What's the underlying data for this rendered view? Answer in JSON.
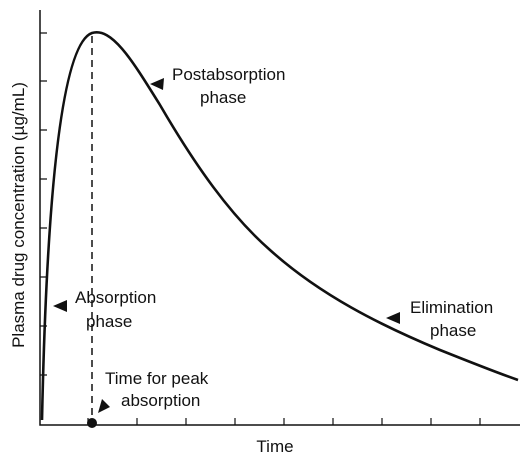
{
  "axis_labels": {
    "x": "Time",
    "y": "Plasma drug concentration (µg/mL)"
  },
  "annotations": [
    {
      "lines": [
        "Postabsorption",
        "phase"
      ]
    },
    {
      "lines": [
        "Absorption",
        "phase"
      ]
    },
    {
      "lines": [
        "Elimination",
        "phase"
      ]
    },
    {
      "lines": [
        "Time for peak",
        "absorption"
      ]
    }
  ]
}
